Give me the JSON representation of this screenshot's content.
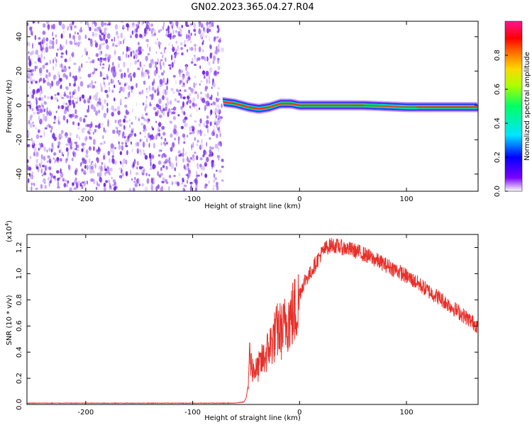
{
  "figure": {
    "title": "GN02.2023.365.04.27.R04"
  },
  "colors": {
    "spectrogram_noise": "#7a2ee8",
    "snr_line": "#e8302a",
    "colorbar_stops": [
      "#ffffff",
      "#7b00ff",
      "#0000ff",
      "#00e5ff",
      "#00ff66",
      "#aaff00",
      "#ffd700",
      "#ff6a00",
      "#ff0000",
      "#ff1493"
    ]
  },
  "chart_data": [
    {
      "type": "heatmap",
      "xlabel": "Height of straight line (km)",
      "ylabel": "Frequency (Hz)",
      "xlim": [
        -255,
        167
      ],
      "ylim": [
        -50,
        49
      ],
      "xticks": [
        -200,
        -100,
        0,
        100
      ],
      "yticks": [
        -40,
        -20,
        0,
        20,
        40
      ],
      "xtick_labels": [
        "-200",
        "-100",
        "0",
        "100"
      ],
      "ytick_labels": [
        "-40",
        "-20",
        "0",
        "20",
        "40"
      ],
      "noise_region_x": [
        -255,
        -72
      ],
      "signal_band": {
        "x_start": -72,
        "x_end": 167,
        "center_hz": [
          [
            -72,
            2
          ],
          [
            -60,
            1
          ],
          [
            -48,
            -1
          ],
          [
            -38,
            -2
          ],
          [
            -28,
            -1
          ],
          [
            -18,
            1
          ],
          [
            -8,
            1
          ],
          [
            0,
            0
          ],
          [
            20,
            0
          ],
          [
            60,
            0
          ],
          [
            100,
            -1
          ],
          [
            140,
            -1
          ],
          [
            167,
            -1
          ]
        ],
        "half_width_hz": 3,
        "peak_amplitude": 0.9
      },
      "colorbar": {
        "label": "Normalized spectral amplitude",
        "range": [
          0,
          1
        ],
        "ticks": [
          0.0,
          0.2,
          0.4,
          0.6,
          0.8
        ],
        "tick_labels": [
          "0.0",
          "0.2",
          "0.4",
          "0.6",
          "0.8"
        ]
      }
    },
    {
      "type": "line",
      "xlabel": "Height of straight line (km)",
      "ylabel": "SNR (10 * v/v)",
      "y_multiplier_label": "(x10",
      "y_multiplier_exp": "4",
      "y_multiplier_close": ")",
      "xlim": [
        -255,
        167
      ],
      "ylim": [
        0,
        1.3
      ],
      "xticks": [
        -200,
        -100,
        0,
        100
      ],
      "yticks": [
        0.0,
        0.2,
        0.4,
        0.6,
        0.8,
        1.0,
        1.2
      ],
      "xtick_labels": [
        "-200",
        "-100",
        "0",
        "100"
      ],
      "ytick_labels": [
        "0.0",
        "0.2",
        "0.4",
        "0.6",
        "0.8",
        "1.0",
        "1.2"
      ],
      "series": [
        {
          "x": [
            -255,
            -200,
            -150,
            -100,
            -60,
            -52,
            -50,
            -48,
            -47,
            -46,
            -44,
            -40,
            -36,
            -32,
            -28,
            -24,
            -20,
            -16,
            -12,
            -8,
            -4,
            0,
            5,
            10,
            15,
            20,
            25,
            30,
            35,
            40,
            50,
            60,
            70,
            80,
            90,
            100,
            110,
            120,
            130,
            140,
            150,
            160,
            167
          ],
          "y": [
            0.01,
            0.01,
            0.01,
            0.01,
            0.01,
            0.02,
            0.05,
            0.15,
            0.45,
            0.35,
            0.3,
            0.28,
            0.35,
            0.4,
            0.48,
            0.55,
            0.62,
            0.6,
            0.7,
            0.72,
            0.78,
            0.85,
            0.95,
            1.0,
            1.08,
            1.15,
            1.2,
            1.22,
            1.21,
            1.2,
            1.18,
            1.15,
            1.11,
            1.07,
            1.03,
            0.98,
            0.93,
            0.87,
            0.82,
            0.76,
            0.7,
            0.64,
            0.6
          ]
        }
      ]
    }
  ]
}
